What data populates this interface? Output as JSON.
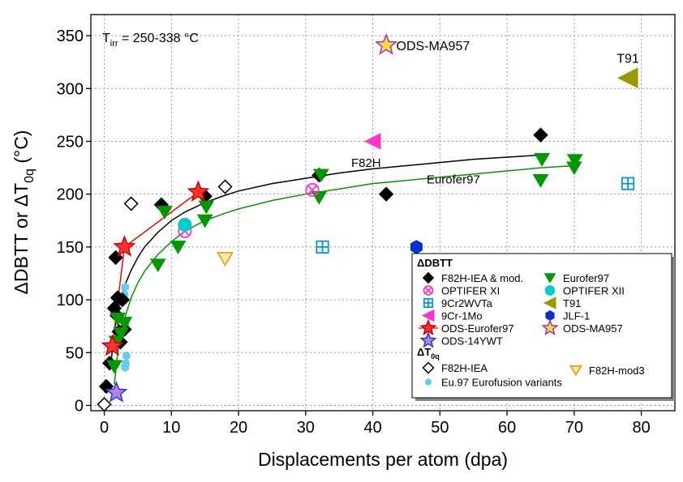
{
  "chart_data": {
    "type": "scatter",
    "xlabel": "Displacements per atom (dpa)",
    "ylabel": "ΔDBTT or ΔT0q (°C)",
    "ylabel_parts": {
      "main": "ΔDBTT or ΔT",
      "sub": "0q",
      "unit": " (°C)"
    },
    "annotation": {
      "main": "T",
      "sub": "irr",
      "rest": " = 250-338 °C"
    },
    "xlim": [
      -2,
      85
    ],
    "ylim": [
      -5,
      370
    ],
    "xticks": [
      0,
      10,
      20,
      30,
      40,
      50,
      60,
      70,
      80
    ],
    "yticks": [
      0,
      50,
      100,
      150,
      200,
      250,
      300,
      350
    ],
    "grid": true,
    "legend_position": "bottom-right",
    "legend_heading_1": "ΔDBTT",
    "legend_heading_2": {
      "main": "ΔT",
      "sub": "0q"
    },
    "curve_labels": [
      {
        "text": "F82H",
        "x": 39,
        "y": 226
      },
      {
        "text": "Eurofer97",
        "x": 52,
        "y": 210
      }
    ],
    "point_labels": [
      {
        "text": "ODS-MA957",
        "x": 43.5,
        "y": 341
      },
      {
        "text": "T91",
        "x": 78,
        "y": 329
      }
    ],
    "fits": [
      {
        "name": "F82H fit",
        "color": "#000000",
        "x": [
          1,
          1.5,
          2,
          3,
          4,
          5,
          6,
          8,
          10,
          12,
          15,
          18,
          20,
          25,
          30,
          35,
          40,
          45,
          50,
          55,
          60,
          65
        ],
        "y": [
          40,
          70,
          90,
          113,
          128,
          140,
          150,
          164,
          175,
          183,
          192,
          199,
          203,
          210,
          215,
          220,
          224,
          227,
          230,
          233,
          235,
          237
        ]
      },
      {
        "name": "Eurofer97 fit",
        "color": "#009900",
        "x": [
          1.5,
          2,
          3,
          4,
          5,
          6,
          8,
          10,
          12,
          15,
          18,
          20,
          25,
          30,
          35,
          40,
          45,
          50,
          55,
          60,
          65,
          70
        ],
        "y": [
          20,
          50,
          82,
          102,
          116,
          127,
          143,
          155,
          165,
          175,
          182,
          186,
          194,
          200,
          205,
          210,
          213,
          216,
          219,
          222,
          225,
          227
        ]
      },
      {
        "name": "ODS-Eurofer97 line",
        "color": "#ff0000",
        "x": [
          1.2,
          3,
          14
        ],
        "y": [
          56,
          150,
          202
        ]
      }
    ],
    "series": [
      {
        "name": "F82H-IEA & mod.",
        "marker": "diamond",
        "color": "#000000",
        "fill": "#000000",
        "x": [
          0.3,
          0.8,
          1.5,
          1.7,
          1.9,
          2.0,
          2.2,
          2.4,
          2.7,
          3.0,
          8.5,
          15,
          32,
          42,
          65
        ],
        "y": [
          18,
          40,
          92,
          140,
          85,
          102,
          70,
          60,
          100,
          72,
          190,
          198,
          218,
          200,
          256
        ]
      },
      {
        "name": "OPTIFER XI",
        "marker": "circlex",
        "color": "#ff33cc",
        "fill": "none",
        "x": [
          12,
          31
        ],
        "y": [
          165,
          204
        ]
      },
      {
        "name": "9Cr2WVTa",
        "marker": "squareplus",
        "color": "#0099dd",
        "fill": "none",
        "x": [
          32.5,
          78
        ],
        "y": [
          150,
          210
        ]
      },
      {
        "name": "9Cr-1Mo",
        "marker": "triangleleft",
        "color": "#ff33cc",
        "fill": "#ff33cc",
        "x": [
          40
        ],
        "y": [
          250
        ]
      },
      {
        "name": "ODS-Eurofer97",
        "marker": "star",
        "color": "#cc0000",
        "fill": "#ff3333",
        "x": [
          1.2,
          3,
          14
        ],
        "y": [
          56,
          150,
          202
        ]
      },
      {
        "name": "ODS-14YWT",
        "marker": "star",
        "color": "#3333cc",
        "fill": "#aa88dd",
        "x": [
          1.8
        ],
        "y": [
          12
        ]
      },
      {
        "name": "Eurofer97",
        "marker": "triangledown",
        "color": "#009900",
        "fill": "#009900",
        "x": [
          1.5,
          1.8,
          2,
          2.5,
          3,
          8,
          9,
          11,
          15,
          15.2,
          32,
          32.3,
          65,
          65.2,
          70,
          70.1
        ],
        "y": [
          37,
          60,
          82,
          68,
          78,
          133,
          183,
          150,
          175,
          188,
          197,
          218,
          213,
          233,
          225,
          232
        ]
      },
      {
        "name": "OPTIFER XII",
        "marker": "circle",
        "color": "#00cccc",
        "fill": "#00cccc",
        "x": [
          12
        ],
        "y": [
          171
        ]
      },
      {
        "name": "T91",
        "marker": "triangleleft",
        "color": "#999900",
        "fill": "#999900",
        "x": [
          78
        ],
        "y": [
          310
        ]
      },
      {
        "name": "JLF-1",
        "marker": "hexagon",
        "color": "#0033cc",
        "fill": "#0033cc",
        "x": [
          46.5
        ],
        "y": [
          150
        ]
      },
      {
        "name": "ODS-MA957",
        "marker": "star",
        "color": "#9933cc",
        "fill": "#ffdd33",
        "x": [
          42
        ],
        "y": [
          341
        ]
      },
      {
        "name": "F82H-IEA",
        "marker": "diamondopen",
        "color": "#000000",
        "fill": "#ffffff",
        "x": [
          0,
          4,
          18
        ],
        "y": [
          1,
          191,
          207
        ]
      },
      {
        "name": "F82H-mod3",
        "marker": "triangledownopen",
        "color": "#e8a020",
        "fill": "#ffe9b0",
        "x": [
          18
        ],
        "y": [
          139
        ]
      },
      {
        "name": "Eu.97 Eurofusion variants",
        "marker": "smallhex",
        "color": "#66ccee",
        "fill": "#66ccee",
        "x": [
          3,
          3.1,
          3.2,
          3.3,
          3.1,
          3.2
        ],
        "y": [
          105,
          112,
          40,
          47,
          36,
          78
        ],
        "legend_label": "Eu.97 Eurofusion variants"
      }
    ],
    "legend_layout": {
      "group1": [
        [
          "F82H-IEA & mod.",
          "Eurofer97"
        ],
        [
          "OPTIFER XI",
          "OPTIFER XII"
        ],
        [
          "9Cr2WVTa",
          "T91"
        ],
        [
          "9Cr-1Mo",
          "JLF-1"
        ],
        [
          "ODS-Eurofer97",
          "ODS-MA957"
        ],
        [
          "ODS-14YWT",
          null
        ]
      ],
      "group2": [
        [
          "F82H-IEA",
          "F82H-mod3"
        ],
        [
          "Eu.97 Eurofusion variants",
          null
        ]
      ]
    }
  }
}
